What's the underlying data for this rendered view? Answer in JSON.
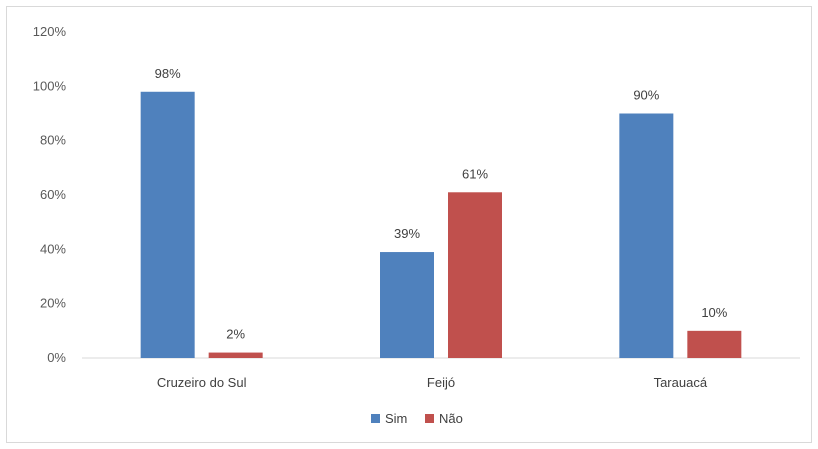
{
  "chart_data": {
    "type": "bar",
    "categories": [
      "Cruzeiro do Sul",
      "Feijó",
      "Tarauacá"
    ],
    "series": [
      {
        "name": "Sim",
        "values": [
          98,
          39,
          90
        ],
        "labels": [
          "98%",
          "39%",
          "90%"
        ],
        "color": "#4f81bd"
      },
      {
        "name": "Não",
        "values": [
          2,
          61,
          10
        ],
        "labels": [
          "2%",
          "61%",
          "10%"
        ],
        "color": "#c0504d"
      }
    ],
    "ylim": [
      0,
      120
    ],
    "yticks": [
      0,
      20,
      40,
      60,
      80,
      100,
      120
    ],
    "ytick_labels": [
      "0%",
      "20%",
      "40%",
      "60%",
      "80%",
      "100%",
      "120%"
    ],
    "grid": false,
    "legend": "bottom"
  }
}
